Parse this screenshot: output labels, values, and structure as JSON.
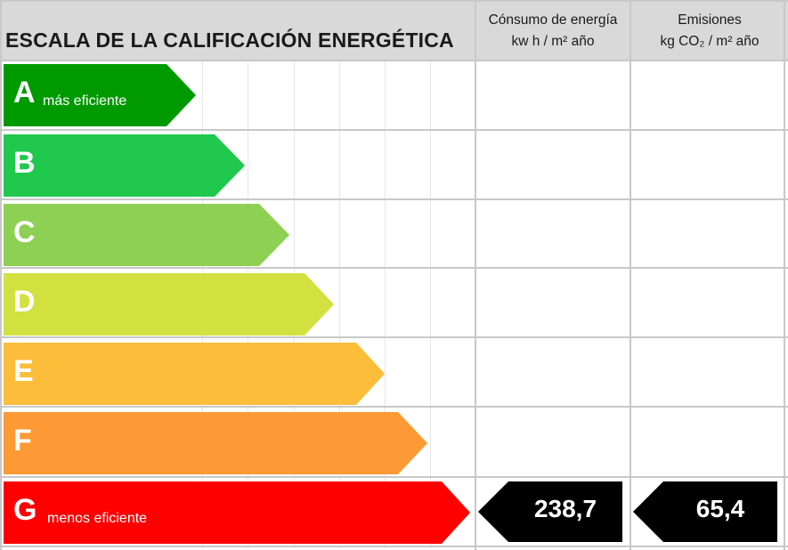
{
  "header": {
    "title": "ESCALA DE LA CALIFICACIÓN ENERGÉTICA",
    "col_consumo_line1": "Cónsumo de energía",
    "col_consumo_line2": "kw h / m² año",
    "col_emisiones_line1": "Emisiones",
    "col_emisiones_line2": "kg CO₂ / m² año"
  },
  "ratings": [
    {
      "letter": "A",
      "caption": "más eficiente",
      "color": "#009a00"
    },
    {
      "letter": "B",
      "caption": "",
      "color": "#20c84e"
    },
    {
      "letter": "C",
      "caption": "",
      "color": "#8ed054"
    },
    {
      "letter": "D",
      "caption": "",
      "color": "#d2e040"
    },
    {
      "letter": "E",
      "caption": "",
      "color": "#fbbd3a"
    },
    {
      "letter": "F",
      "caption": "",
      "color": "#fd9a35"
    },
    {
      "letter": "G",
      "caption": "menos eficiente",
      "color": "#fe0000"
    }
  ],
  "result": {
    "rating_letter": "G",
    "consumo_value": "238,7",
    "emisiones_value": "65,4",
    "value_color": "#000000"
  }
}
